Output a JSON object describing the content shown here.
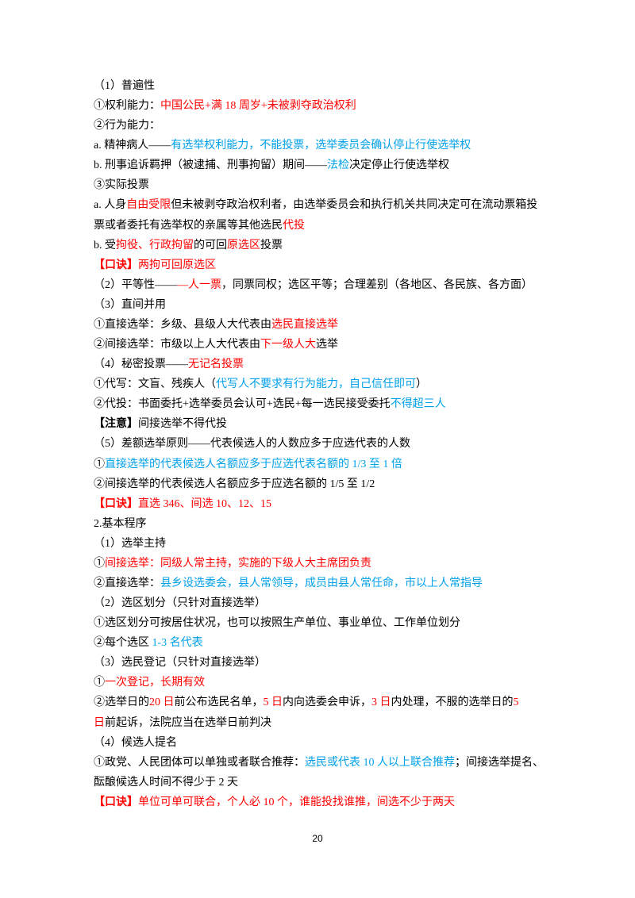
{
  "lines": [
    [
      {
        "text": "（1）普遍性",
        "color": "#000000"
      }
    ],
    [
      {
        "text": "①权利能力：",
        "color": "#000000"
      },
      {
        "text": "中国公民+满 18 周岁+未被剥夺政治权利",
        "color": "#ff0000"
      }
    ],
    [
      {
        "text": "②行为能力：",
        "color": "#000000"
      }
    ],
    [
      {
        "text": "a. 精神病人——",
        "color": "#000000"
      },
      {
        "text": "有选举权利能力，不能投票，选举委员会确认停止行使选举权",
        "color": "#00a0e9"
      }
    ],
    [
      {
        "text": "b. 刑事追诉羁押（被逮捕、刑事拘留）期间——",
        "color": "#000000"
      },
      {
        "text": "法检",
        "color": "#00a0e9"
      },
      {
        "text": "决定停止行使选举权",
        "color": "#000000"
      }
    ],
    [
      {
        "text": "③实际投票",
        "color": "#000000"
      }
    ],
    [
      {
        "text": "a. 人身",
        "color": "#000000"
      },
      {
        "text": "自由受限",
        "color": "#ff0000"
      },
      {
        "text": "但未被剥夺政治权利者，由选举委员会和执行机关共同决定可在流动票箱投",
        "color": "#000000"
      }
    ],
    [
      {
        "text": "票或者委托有选举权的亲属等其他选民",
        "color": "#000000"
      },
      {
        "text": "代投",
        "color": "#ff0000"
      }
    ],
    [
      {
        "text": "b. 受",
        "color": "#000000"
      },
      {
        "text": "拘役、行政拘留",
        "color": "#ff0000"
      },
      {
        "text": "的可回",
        "color": "#000000"
      },
      {
        "text": "原选区",
        "color": "#ff0000"
      },
      {
        "text": "投票",
        "color": "#000000"
      }
    ],
    [
      {
        "text": "【口诀】",
        "color": "#ff0000",
        "bold": true
      },
      {
        "text": "两拘可回原选区",
        "color": "#ff0000"
      }
    ],
    [
      {
        "text": "（2）平等性——",
        "color": "#000000"
      },
      {
        "text": "—人一票",
        "color": "#ff0000"
      },
      {
        "text": "，同票同权；选区平等；合理差别（各地区、各民族、各方面）",
        "color": "#000000"
      }
    ],
    [
      {
        "text": "（3）直间并用",
        "color": "#000000"
      }
    ],
    [
      {
        "text": "①直接选举：乡级、县级人大代表由",
        "color": "#000000"
      },
      {
        "text": "选民直接选举",
        "color": "#ff0000"
      }
    ],
    [
      {
        "text": "②间接选举：市级以上人大代表由",
        "color": "#000000"
      },
      {
        "text": "下一级人大",
        "color": "#ff0000"
      },
      {
        "text": "选举",
        "color": "#000000"
      }
    ],
    [
      {
        "text": "（4）秘密投票——",
        "color": "#000000"
      },
      {
        "text": "无记名投票",
        "color": "#ff0000"
      }
    ],
    [
      {
        "text": "①代写：文盲、残疾人（",
        "color": "#000000"
      },
      {
        "text": "代写人不要求有行为能力，自己信任即可",
        "color": "#00a0e9"
      },
      {
        "text": "）",
        "color": "#000000"
      }
    ],
    [
      {
        "text": "②代投：书面委托+选举委员会认可+选民+每一选民接受委托",
        "color": "#000000"
      },
      {
        "text": "不得超三人",
        "color": "#00a0e9"
      }
    ],
    [
      {
        "text": "【注意】",
        "color": "#000000",
        "bold": true
      },
      {
        "text": "间接选举不得代投",
        "color": "#000000"
      }
    ],
    [
      {
        "text": "（5）差额选举原则——代表候选人的人数应多于应选代表的人数",
        "color": "#000000"
      }
    ],
    [
      {
        "text": "①",
        "color": "#000000"
      },
      {
        "text": "直接选举的代表候选人名额应多于应选代表名额的 1/3 至 1 倍",
        "color": "#00a0e9"
      }
    ],
    [
      {
        "text": "②间接选举的代表候选人名额应多于应选名额的 1/5 至 1/2",
        "color": "#000000"
      }
    ],
    [
      {
        "text": "【口诀】",
        "color": "#ff0000",
        "bold": true
      },
      {
        "text": "直选 346、间选 10、12、15",
        "color": "#ff0000"
      }
    ],
    [
      {
        "text": "2.基本程序",
        "color": "#000000"
      }
    ],
    [
      {
        "text": "（1）选举主持",
        "color": "#000000"
      }
    ],
    [
      {
        "text": "①",
        "color": "#000000"
      },
      {
        "text": "间接选举：同级人常主持，实施的下级人大主席团负责",
        "color": "#ff0000"
      }
    ],
    [
      {
        "text": "②直接选举：",
        "color": "#000000"
      },
      {
        "text": "县乡设选委会，县人常领导，成员由县人常任命，市以上人常指导",
        "color": "#00a0e9"
      }
    ],
    [
      {
        "text": "（2）选区划分（只针对直接选举）",
        "color": "#000000"
      }
    ],
    [
      {
        "text": "①选区划分可按居住状况，也可以按照生产单位、事业单位、工作单位划分",
        "color": "#000000"
      }
    ],
    [
      {
        "text": "②每个选区 ",
        "color": "#000000"
      },
      {
        "text": "1-3 名代表",
        "color": "#00a0e9"
      }
    ],
    [
      {
        "text": "（3）选民登记（只针对直接选举）",
        "color": "#000000"
      }
    ],
    [
      {
        "text": "①",
        "color": "#000000"
      },
      {
        "text": "一次登记，长期有效",
        "color": "#ff0000"
      }
    ],
    [
      {
        "text": "②选举日的",
        "color": "#000000"
      },
      {
        "text": "20 日",
        "color": "#ff0000"
      },
      {
        "text": "前公布选民名单，",
        "color": "#000000"
      },
      {
        "text": "5 日",
        "color": "#ff0000"
      },
      {
        "text": "内向选委会申诉，",
        "color": "#000000"
      },
      {
        "text": "3 日",
        "color": "#ff0000"
      },
      {
        "text": "内处理，不服的选举日的",
        "color": "#000000"
      },
      {
        "text": "5",
        "color": "#ff0000"
      }
    ],
    [
      {
        "text": "日",
        "color": "#ff0000"
      },
      {
        "text": "前起诉，法院应当在选举日前判决",
        "color": "#000000"
      }
    ],
    [
      {
        "text": "（4）候选人提名",
        "color": "#000000"
      }
    ],
    [
      {
        "text": "①政党、人民团体可以单独或者联合推荐：",
        "color": "#000000"
      },
      {
        "text": "选民或代表 10 人以上联合推荐",
        "color": "#00a0e9"
      },
      {
        "text": "；间接选举提名、",
        "color": "#000000"
      }
    ],
    [
      {
        "text": "酝酿候选人时间不得少于 2 天",
        "color": "#000000"
      }
    ],
    [
      {
        "text": "【口诀】",
        "color": "#ff0000",
        "bold": true
      },
      {
        "text": "单位可单可联合，个人必 10 个，谁能投找谁推，间选不少于两天",
        "color": "#ff0000"
      }
    ]
  ],
  "page_number": "20"
}
